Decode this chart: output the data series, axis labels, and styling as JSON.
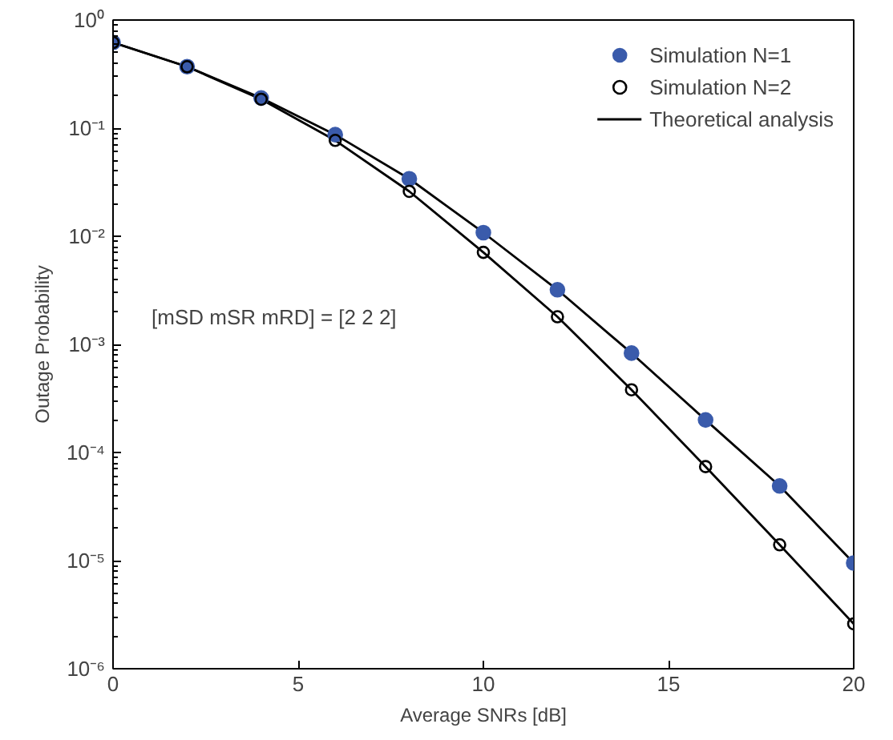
{
  "chart_data": {
    "type": "scatter",
    "xlabel": "Average SNRs [dB]",
    "ylabel": "Outage Probability",
    "x": [
      0,
      2,
      4,
      6,
      8,
      10,
      12,
      14,
      16,
      18,
      20
    ],
    "series": [
      {
        "name": "Simulation N=1",
        "marker": "circle",
        "color": "#3a5bab",
        "values": [
          0.62,
          0.37,
          0.19,
          0.087,
          0.034,
          0.0108,
          0.0032,
          0.00083,
          0.0002,
          4.9e-05,
          9.5e-06
        ]
      },
      {
        "name": "Simulation N=2",
        "marker": "circle_open",
        "color": "#000000",
        "values": [
          0.62,
          0.37,
          0.185,
          0.077,
          0.026,
          0.0071,
          0.0018,
          0.00038,
          7.4e-05,
          1.4e-05,
          2.6e-06
        ]
      },
      {
        "name": "Theoretical analysis",
        "type": "line",
        "line_style": "solid",
        "color": "#000000",
        "values": [
          0.62,
          0.37,
          0.19,
          0.087,
          0.034,
          0.0108,
          0.0032,
          0.00083,
          0.0002,
          4.9e-05,
          9.5e-06
        ]
      },
      {
        "type": "line",
        "line_style": "solid",
        "color": "#000000",
        "values": [
          0.62,
          0.37,
          0.185,
          0.077,
          0.026,
          0.0071,
          0.0018,
          0.00038,
          7.4e-05,
          1.4e-05,
          2.6e-06
        ]
      }
    ],
    "xlim": [
      0,
      20
    ],
    "xticks": [
      0,
      5,
      10,
      15,
      20
    ],
    "ylim": [
      1e-06,
      1
    ],
    "log": "y",
    "yticks": [
      {
        "value": 1e-06,
        "label": "10⁻⁶"
      },
      {
        "value": 1e-05,
        "label": "10⁻⁵"
      },
      {
        "value": 0.0001,
        "label": "10⁻⁴"
      },
      {
        "value": 0.001,
        "label": "10⁻³"
      },
      {
        "value": 0.01,
        "label": "10⁻²"
      },
      {
        "value": 0.1,
        "label": "10⁻¹"
      },
      {
        "value": 1,
        "label": "10⁰"
      }
    ],
    "annotations": [
      "[mSD mSR mRD] = [2  2  2]"
    ],
    "grid": false,
    "legend": "top right"
  }
}
